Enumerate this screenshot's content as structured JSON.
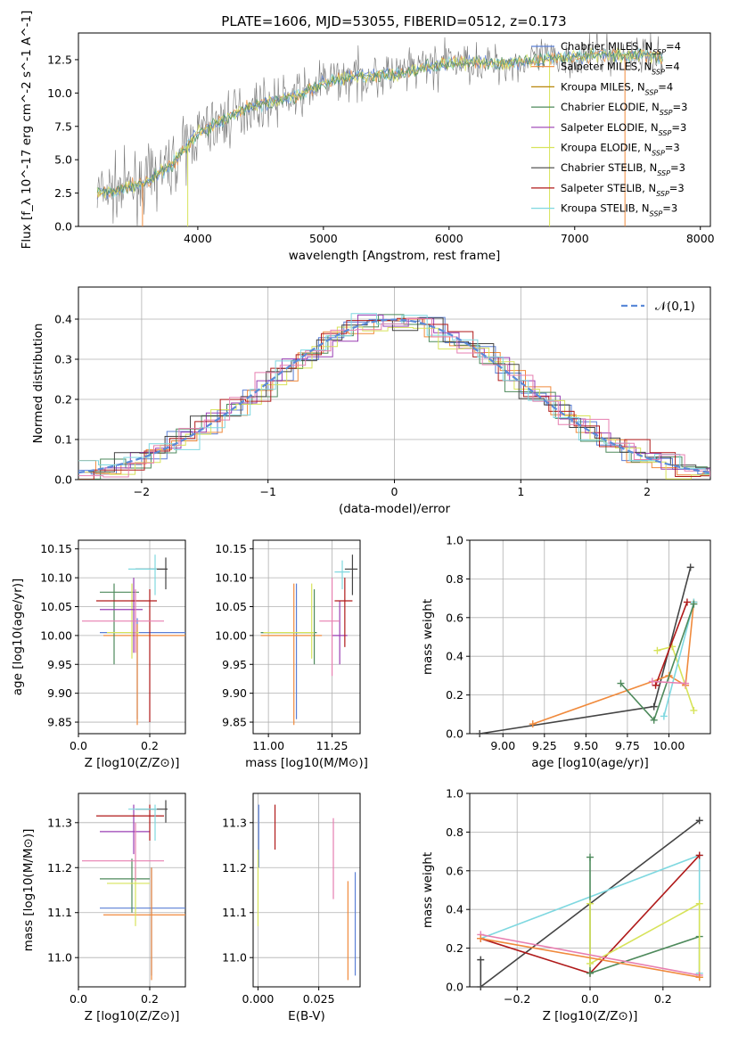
{
  "figure_title": "PLATE=1606, MJD=53055, FIBERID=0512, z=0.173",
  "colors": {
    "Chabrier MILES": "#5a7fd6",
    "Salpeter MILES": "#f08a3c",
    "Kroupa MILES": "#b8860b",
    "Chabrier ELODIE": "#4e8a5c",
    "Salpeter ELODIE": "#9a3fb4",
    "Kroupa ELODIE": "#d7e35a",
    "Chabrier STELIB": "#444444",
    "Salpeter STELIB": "#b01a1a",
    "Kroupa STELIB": "#7fd8e0",
    "data": "#777777",
    "normal": "#5b8ad8",
    "pink": "#e77fb0"
  },
  "chart_data": [
    {
      "id": "spectrum",
      "type": "line",
      "title": "PLATE=1606, MJD=53055, FIBERID=0512, z=0.173",
      "xlabel": "wavelength [Angstrom, rest frame]",
      "ylabel": "Flux [f_λ 10^-17 erg cm^-2 s^-1 A^-1]",
      "xlim": [
        3050,
        8080
      ],
      "ylim": [
        0,
        14.5
      ],
      "xticks": [
        "4000",
        "5000",
        "6000",
        "7000",
        "8000"
      ],
      "yticks": [
        "0.0",
        "2.5",
        "5.0",
        "7.5",
        "10.0",
        "12.5"
      ],
      "legend_position": "top-right",
      "legend": [
        "Chabrier MILES, N_SSP=4",
        "Salpeter MILES, N_SSP=4",
        "Kroupa MILES, N_SSP=4",
        "Chabrier ELODIE, N_SSP=3",
        "Salpeter ELODIE, N_SSP=3",
        "Kroupa ELODIE, N_SSP=3",
        "Chabrier STELIB, N_SSP=3",
        "Salpeter STELIB, N_SSP=3",
        "Kroupa STELIB, N_SSP=3"
      ],
      "continuum": {
        "x": [
          3200,
          3400,
          3600,
          3800,
          4000,
          4200,
          4400,
          4600,
          4800,
          5000,
          5200,
          5400,
          5600,
          5800,
          6000,
          6200,
          6400,
          6600,
          6800,
          7000,
          7200,
          7400,
          7600,
          7700
        ],
        "y": [
          2.5,
          2.8,
          3.4,
          4.7,
          7.0,
          7.9,
          8.9,
          9.4,
          9.8,
          10.8,
          11.2,
          11.3,
          11.4,
          11.9,
          12.3,
          12.3,
          12.2,
          12.3,
          12.6,
          12.7,
          12.9,
          12.8,
          12.9,
          12.5
        ]
      }
    },
    {
      "id": "residuals",
      "type": "line",
      "xlabel": "(data-model)/error",
      "ylabel": "Normed distribution",
      "xlim": [
        -2.5,
        2.5
      ],
      "ylim": [
        0,
        0.48
      ],
      "xticks": [
        "−2",
        "−1",
        "0",
        "1",
        "2"
      ],
      "yticks": [
        "0.0",
        "0.1",
        "0.2",
        "0.3",
        "0.4"
      ],
      "legend": [
        "𝒩(0,1)"
      ],
      "legend_position": "top-right",
      "grid": true
    },
    {
      "id": "age-vs-Z",
      "type": "scatter",
      "xlabel": "Z [log10(Z/Z⊙)]",
      "ylabel": "age  [log10(age/yr)]",
      "xlim": [
        0.0,
        0.3
      ],
      "ylim": [
        9.83,
        10.165
      ],
      "xticks": [
        "0.0",
        "0.2"
      ],
      "yticks": [
        "9.85",
        "9.90",
        "9.95",
        "10.00",
        "10.05",
        "10.10",
        "10.15"
      ],
      "grid": true,
      "points": [
        {
          "series": "Chabrier MILES",
          "x": 0.165,
          "y": 10.005,
          "xerr": [
            0.06,
            0.3
          ],
          "yerr": [
            9.855,
            10.03
          ]
        },
        {
          "series": "Salpeter MILES",
          "x": 0.165,
          "y": 10.0,
          "xerr": [
            0.07,
            0.3
          ],
          "yerr": [
            9.845,
            10.02
          ]
        },
        {
          "series": "Chabrier ELODIE",
          "x": 0.1,
          "y": 10.075,
          "xerr": [
            0.06,
            0.17
          ],
          "yerr": [
            9.95,
            10.09
          ]
        },
        {
          "series": "Kroupa ELODIE",
          "x": 0.15,
          "y": 10.005,
          "xerr": [
            0.08,
            0.17
          ],
          "yerr": [
            9.96,
            10.09
          ]
        },
        {
          "series": "Salpeter ELODIE",
          "x": 0.155,
          "y": 10.045,
          "xerr": [
            0.06,
            0.18
          ],
          "yerr": [
            9.97,
            10.1
          ]
        },
        {
          "series": "Chabrier STELIB",
          "x": 0.245,
          "y": 10.115,
          "xerr": [
            0.16,
            0.25
          ],
          "yerr": [
            10.08,
            10.135
          ]
        },
        {
          "series": "Salpeter STELIB",
          "x": 0.2,
          "y": 10.06,
          "xerr": [
            0.05,
            0.22
          ],
          "yerr": [
            9.85,
            10.08
          ]
        },
        {
          "series": "Kroupa STELIB",
          "x": 0.215,
          "y": 10.115,
          "xerr": [
            0.14,
            0.22
          ],
          "yerr": [
            10.07,
            10.14
          ]
        },
        {
          "series": "pink",
          "x": 0.16,
          "y": 10.025,
          "xerr": [
            0.01,
            0.24
          ],
          "yerr": [
            9.97,
            10.08
          ]
        }
      ]
    },
    {
      "id": "age-vs-mass",
      "type": "scatter",
      "xlabel": "mass [log10(M/M⊙)]",
      "xlim": [
        10.94,
        11.36
      ],
      "ylim": [
        9.83,
        10.165
      ],
      "xticks": [
        "11.00",
        "11.25"
      ],
      "yticks": [
        "9.85",
        "9.90",
        "9.95",
        "10.00",
        "10.05",
        "10.10",
        "10.15"
      ],
      "grid": true,
      "points": [
        {
          "series": "Chabrier MILES",
          "x": 11.11,
          "y": 10.005,
          "xerr": [
            10.97,
            11.17
          ],
          "yerr": [
            9.855,
            10.09
          ]
        },
        {
          "series": "Salpeter MILES",
          "x": 11.1,
          "y": 10.0,
          "xerr": [
            10.97,
            11.21
          ],
          "yerr": [
            9.845,
            10.09
          ]
        },
        {
          "series": "Chabrier ELODIE",
          "x": 11.18,
          "y": 10.005,
          "xerr": [
            10.97,
            11.19
          ],
          "yerr": [
            9.95,
            10.08
          ]
        },
        {
          "series": "Kroupa ELODIE",
          "x": 11.17,
          "y": 10.005,
          "xerr": [
            10.98,
            11.18
          ],
          "yerr": [
            9.96,
            10.09
          ]
        },
        {
          "series": "Salpeter ELODIE",
          "x": 11.28,
          "y": 10.0,
          "xerr": [
            11.25,
            11.31
          ],
          "yerr": [
            9.95,
            10.06
          ]
        },
        {
          "series": "Chabrier STELIB",
          "x": 11.33,
          "y": 10.115,
          "xerr": [
            11.3,
            11.35
          ],
          "yerr": [
            10.07,
            10.14
          ]
        },
        {
          "series": "Salpeter STELIB",
          "x": 11.3,
          "y": 10.06,
          "xerr": [
            11.26,
            11.33
          ],
          "yerr": [
            9.98,
            10.1
          ]
        },
        {
          "series": "Kroupa STELIB",
          "x": 11.29,
          "y": 10.11,
          "xerr": [
            11.26,
            11.32
          ],
          "yerr": [
            10.08,
            10.13
          ]
        },
        {
          "series": "pink",
          "x": 11.25,
          "y": 10.025,
          "xerr": [
            11.2,
            11.28
          ],
          "yerr": [
            9.93,
            10.1
          ]
        }
      ]
    },
    {
      "id": "mass-weight-vs-age",
      "type": "line",
      "xlabel": "age  [log10(age/yr)]",
      "ylabel": "mass weight",
      "xlim": [
        8.8,
        10.25
      ],
      "ylim": [
        0.0,
        1.0
      ],
      "xticks": [
        "9.00",
        "9.25",
        "9.50",
        "9.75",
        "10.00"
      ],
      "yticks": [
        "0.0",
        "0.2",
        "0.4",
        "0.6",
        "0.8",
        "1.0"
      ],
      "grid": true,
      "series": [
        {
          "name": "Chabrier STELIB",
          "x": [
            8.86,
            9.91,
            10.13
          ],
          "y": [
            0.0,
            0.14,
            0.86
          ]
        },
        {
          "name": "Salpeter MILES",
          "x": [
            9.18,
            10.0,
            10.1,
            10.15
          ],
          "y": [
            0.05,
            0.3,
            0.25,
            0.68
          ]
        },
        {
          "name": "Kroupa ELODIE",
          "x": [
            9.93,
            10.02,
            10.15
          ],
          "y": [
            0.43,
            0.45,
            0.12
          ]
        },
        {
          "name": "Kroupa STELIB",
          "x": [
            9.97,
            10.15
          ],
          "y": [
            0.09,
            0.68
          ]
        },
        {
          "name": "Chabrier ELODIE",
          "x": [
            9.71,
            9.91,
            10.15
          ],
          "y": [
            0.26,
            0.07,
            0.67
          ]
        },
        {
          "name": "Salpeter STELIB",
          "x": [
            9.92,
            10.11
          ],
          "y": [
            0.25,
            0.68
          ]
        },
        {
          "name": "pink",
          "x": [
            9.9,
            10.1
          ],
          "y": [
            0.27,
            0.26
          ]
        }
      ]
    },
    {
      "id": "mass-vs-Z",
      "type": "scatter",
      "xlabel": "Z [log10(Z/Z⊙)]",
      "ylabel": "mass [log10(M/M⊙)]",
      "xlim": [
        0.0,
        0.3
      ],
      "ylim": [
        10.935,
        11.365
      ],
      "xticks": [
        "0.0",
        "0.2"
      ],
      "yticks": [
        "11.0",
        "11.1",
        "11.2",
        "11.3"
      ],
      "grid": true,
      "points": [
        {
          "series": "Chabrier MILES",
          "x": 0.205,
          "y": 11.11,
          "xerr": [
            0.06,
            0.3
          ],
          "yerr": [
            10.96,
            11.2
          ]
        },
        {
          "series": "Salpeter MILES",
          "x": 0.205,
          "y": 11.095,
          "xerr": [
            0.07,
            0.3
          ],
          "yerr": [
            10.95,
            11.2
          ]
        },
        {
          "series": "Chabrier ELODIE",
          "x": 0.15,
          "y": 11.175,
          "xerr": [
            0.06,
            0.2
          ],
          "yerr": [
            11.1,
            11.22
          ]
        },
        {
          "series": "Kroupa ELODIE",
          "x": 0.16,
          "y": 11.165,
          "xerr": [
            0.08,
            0.2
          ],
          "yerr": [
            11.07,
            11.2
          ]
        },
        {
          "series": "Salpeter ELODIE",
          "x": 0.155,
          "y": 11.28,
          "xerr": [
            0.06,
            0.2
          ],
          "yerr": [
            11.23,
            11.34
          ]
        },
        {
          "series": "Chabrier STELIB",
          "x": 0.245,
          "y": 11.33,
          "xerr": [
            0.16,
            0.25
          ],
          "yerr": [
            11.3,
            11.35
          ]
        },
        {
          "series": "Salpeter STELIB",
          "x": 0.2,
          "y": 11.315,
          "xerr": [
            0.05,
            0.24
          ],
          "yerr": [
            11.26,
            11.34
          ]
        },
        {
          "series": "Kroupa STELIB",
          "x": 0.215,
          "y": 11.33,
          "xerr": [
            0.14,
            0.22
          ],
          "yerr": [
            11.26,
            11.34
          ]
        },
        {
          "series": "pink",
          "x": 0.16,
          "y": 11.215,
          "xerr": [
            0.01,
            0.24
          ],
          "yerr": [
            11.17,
            11.3
          ]
        }
      ]
    },
    {
      "id": "mass-vs-ebv",
      "type": "scatter",
      "xlabel": "E(B-V)",
      "xlim": [
        -0.002,
        0.042
      ],
      "ylim": [
        10.935,
        11.365
      ],
      "xticks": [
        "0.000",
        "0.025"
      ],
      "yticks": [
        "11.0",
        "11.1",
        "11.2",
        "11.3"
      ],
      "grid": true,
      "points": [
        {
          "series": "Chabrier MILES",
          "x": 0.04,
          "y": 11.1,
          "yerr": [
            10.96,
            11.19
          ]
        },
        {
          "series": "Salpeter MILES",
          "x": 0.037,
          "y": 11.08,
          "yerr": [
            10.95,
            11.17
          ]
        },
        {
          "series": "pink",
          "x": 0.031,
          "y": 11.22,
          "yerr": [
            11.13,
            11.31
          ]
        },
        {
          "series": "Salpeter STELIB",
          "x": 0.007,
          "y": 11.3,
          "yerr": [
            11.24,
            11.34
          ]
        },
        {
          "series": "Chabrier MILES",
          "x": 0.0003,
          "y": 11.3,
          "yerr": [
            11.2,
            11.34
          ]
        },
        {
          "series": "Kroupa ELODIE",
          "x": 0.0,
          "y": 11.15,
          "yerr": [
            11.07,
            11.24
          ]
        }
      ]
    },
    {
      "id": "mass-weight-vs-Z",
      "type": "line",
      "xlabel": "Z [log10(Z/Z⊙)]",
      "ylabel": "mass weight",
      "xlim": [
        -0.33,
        0.33
      ],
      "ylim": [
        0.0,
        1.0
      ],
      "xticks": [
        "−0.2",
        "0.0",
        "0.2"
      ],
      "yticks": [
        "0.0",
        "0.2",
        "0.4",
        "0.6",
        "0.8",
        "1.0"
      ],
      "grid": true,
      "series": [
        {
          "name": "Chabrier STELIB",
          "x": [
            -0.3,
            -0.3,
            0.3
          ],
          "y": [
            0.14,
            0.0,
            0.86
          ]
        },
        {
          "name": "Kroupa STELIB",
          "x": [
            -0.3,
            0.3,
            0.3
          ],
          "y": [
            0.25,
            0.68,
            0.07
          ]
        },
        {
          "name": "Salpeter STELIB",
          "x": [
            -0.3,
            0.0,
            0.3
          ],
          "y": [
            0.25,
            0.07,
            0.68
          ]
        },
        {
          "name": "Chabrier ELODIE",
          "x": [
            0.0,
            0.0,
            0.3,
            0.3
          ],
          "y": [
            0.67,
            0.07,
            0.26,
            0.05
          ]
        },
        {
          "name": "Kroupa ELODIE",
          "x": [
            0.0,
            0.0,
            0.3,
            0.3
          ],
          "y": [
            0.43,
            0.12,
            0.43,
            0.05
          ]
        },
        {
          "name": "pink",
          "x": [
            -0.3,
            0.3
          ],
          "y": [
            0.27,
            0.06
          ]
        },
        {
          "name": "Salpeter MILES",
          "x": [
            -0.3,
            0.3
          ],
          "y": [
            0.25,
            0.05
          ]
        }
      ]
    }
  ]
}
